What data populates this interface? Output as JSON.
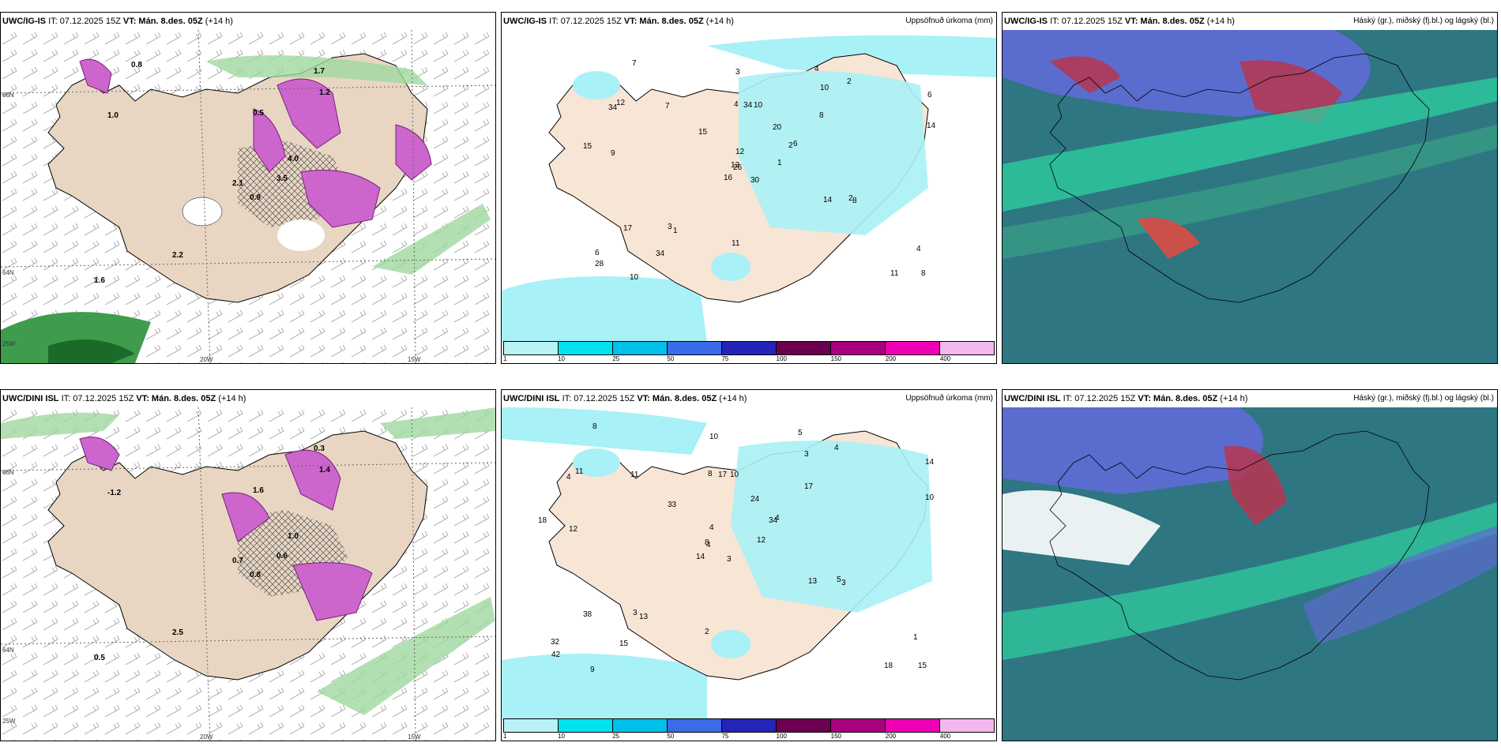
{
  "panels": [
    {
      "model": "UWC/IG-IS",
      "it": "IT: 07.12.2025 15Z",
      "vt": "VT: Mán. 8.des. 05Z",
      "lead": "(+14 h)",
      "title_right": ""
    },
    {
      "model": "UWC/IG-IS",
      "it": "IT: 07.12.2025 15Z",
      "vt": "VT: Mán. 8.des. 05Z",
      "lead": "(+14 h)",
      "title_right": "Uppsöfnuð úrkoma (mm)"
    },
    {
      "model": "UWC/IG-IS",
      "it": "IT: 07.12.2025 15Z",
      "vt": "VT: Mán. 8.des. 05Z",
      "lead": "(+14 h)",
      "title_right": "Háský (gr.), miðský (fj.bl.) og lágský (bl.)"
    },
    {
      "model": "UWC/DINI ISL",
      "it": "IT: 07.12.2025 15Z",
      "vt": "VT: Mán. 8.des. 05Z",
      "lead": "(+14 h)",
      "title_right": ""
    },
    {
      "model": "UWC/DINI ISL",
      "it": "IT: 07.12.2025 15Z",
      "vt": "VT: Mán. 8.des. 05Z",
      "lead": "(+14 h)",
      "title_right": "Uppsöfnuð úrkoma (mm)"
    },
    {
      "model": "UWC/DINI ISL",
      "it": "IT: 07.12.2025 15Z",
      "vt": "VT: Mán. 8.des. 05Z",
      "lead": "(+14 h)",
      "title_right": "Háský (gr.), miðský (fj.bl.) og lágský (bl.)"
    }
  ],
  "map_ticks": {
    "lon_left": "20W",
    "lon_right": "15W",
    "lat_top": "66N",
    "lat_mid": "64N",
    "lat_bottom": "25W"
  },
  "wind_top_labels": [
    "0.9",
    "1.0",
    "2.1",
    "1.6",
    "4.0",
    "2.2",
    "1.7",
    "0.5",
    "1.2",
    "3.5",
    "0.8"
  ],
  "wind_bottom_labels": [
    "0.8",
    "-1.2",
    "0.7",
    "0.5",
    "1.0",
    "2.5",
    "0.3",
    "1.6",
    "1.4",
    "0.6"
  ],
  "precip_top_labels": [
    "30",
    "34",
    "26",
    "6",
    "2",
    "1",
    "4",
    "10",
    "10",
    "1",
    "7",
    "8",
    "9",
    "6",
    "16",
    "8",
    "10",
    "4",
    "20",
    "17",
    "15",
    "28",
    "34",
    "34",
    "6",
    "8",
    "12",
    "3",
    "15",
    "14",
    "14",
    "13",
    "11",
    "12",
    "7",
    "2",
    "3",
    "11",
    "4",
    "2"
  ],
  "precip_bottom_labels": [
    "3",
    "4",
    "4",
    "32",
    "34",
    "13",
    "5",
    "10",
    "3",
    "12",
    "8",
    "15",
    "12",
    "14",
    "14",
    "17",
    "9",
    "8",
    "24",
    "38",
    "33",
    "42",
    "15",
    "17",
    "4",
    "3",
    "11",
    "10",
    "18",
    "13",
    "10",
    "8",
    "2",
    "4",
    "11",
    "4",
    "3",
    "18",
    "1",
    "5"
  ],
  "legend": {
    "ticks": [
      "1",
      "10",
      "25",
      "50",
      "75",
      "100",
      "150",
      "200",
      "400"
    ],
    "colors": [
      "#b8f2f5",
      "#00e3ef",
      "#00c0ea",
      "#3a6be8",
      "#2424b8",
      "#6a004e",
      "#a8007e",
      "#ee00b4",
      "#f3b8f0"
    ]
  },
  "colors": {
    "land": "#f7e5d6",
    "sea_precip": "#a8f1f6",
    "coast": "#000000",
    "wind_green": "#9fd89f",
    "wind_dark": "#1a6b2a",
    "magenta": "#cc66cc",
    "cloud_sea": "#2f7683",
    "cloud_blue": "#5b6ccf",
    "cloud_red": "#b8354f",
    "cloud_green": "#2ed1a0"
  }
}
